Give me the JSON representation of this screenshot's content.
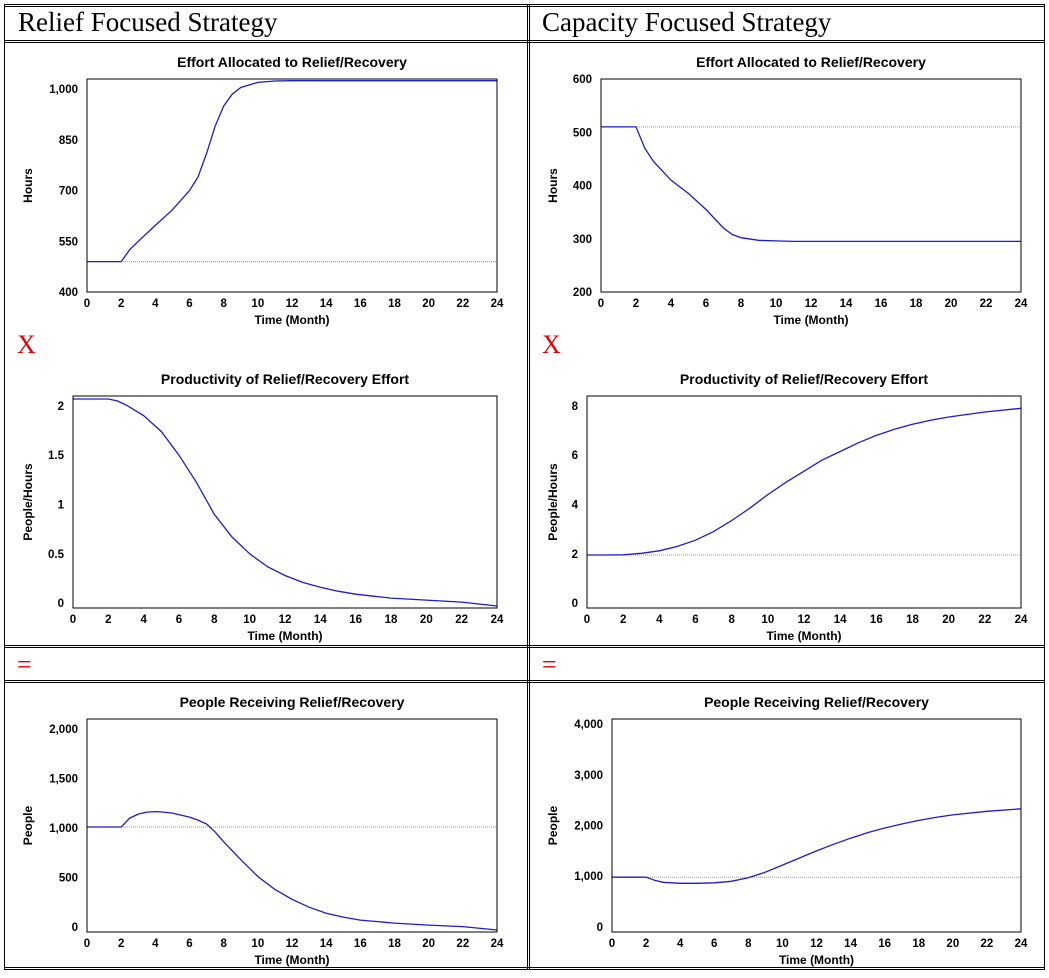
{
  "columns": [
    {
      "title": "Relief Focused Strategy"
    },
    {
      "title": "Capacity Focused Strategy"
    }
  ],
  "operators": {
    "multiply": "X",
    "equals": "="
  },
  "chart_data": [
    {
      "id": "relief-effort",
      "type": "line",
      "title": "Effort Allocated to Relief/Recovery",
      "xlabel": "Time (Month)",
      "ylabel": "Hours",
      "xlim": [
        0,
        24
      ],
      "ylim": [
        400,
        1030
      ],
      "xticks": [
        "0",
        "2",
        "4",
        "6",
        "8",
        "10",
        "12",
        "14",
        "16",
        "18",
        "20",
        "22",
        "24"
      ],
      "yticks": [
        {
          "v": 400,
          "label": "400"
        },
        {
          "v": 550,
          "label": "550"
        },
        {
          "v": 700,
          "label": "700"
        },
        {
          "v": 850,
          "label": "850"
        },
        {
          "v": 1000,
          "label": "1,000"
        }
      ],
      "reference": 490,
      "series": [
        {
          "x": [
            0,
            1,
            2,
            2.5,
            3,
            4,
            5,
            6,
            6.5,
            7,
            7.5,
            8,
            8.5,
            9,
            10,
            11,
            12,
            14,
            16,
            18,
            20,
            22,
            24
          ],
          "y": [
            490,
            490,
            490,
            525,
            550,
            597,
            643,
            700,
            740,
            810,
            890,
            950,
            985,
            1005,
            1020,
            1024,
            1025,
            1025,
            1025,
            1025,
            1025,
            1025,
            1025
          ]
        }
      ]
    },
    {
      "id": "capacity-effort",
      "type": "line",
      "title": "Effort Allocated to Relief/Recovery",
      "xlabel": "Time (Month)",
      "ylabel": "Hours",
      "xlim": [
        0,
        24
      ],
      "ylim": [
        200,
        600
      ],
      "xticks": [
        "0",
        "2",
        "4",
        "6",
        "8",
        "10",
        "12",
        "14",
        "16",
        "18",
        "20",
        "22",
        "24"
      ],
      "yticks": [
        {
          "v": 200,
          "label": "200"
        },
        {
          "v": 300,
          "label": "300"
        },
        {
          "v": 400,
          "label": "400"
        },
        {
          "v": 500,
          "label": "500"
        },
        {
          "v": 600,
          "label": "600"
        }
      ],
      "reference": 510,
      "series": [
        {
          "x": [
            0,
            1,
            2,
            2.5,
            3,
            4,
            5,
            6,
            7,
            7.5,
            8,
            9,
            10,
            11,
            12,
            14,
            16,
            18,
            20,
            22,
            24
          ],
          "y": [
            510,
            510,
            510,
            470,
            445,
            410,
            385,
            355,
            320,
            308,
            302,
            297,
            296,
            295,
            295,
            295,
            295,
            295,
            295,
            295,
            295
          ]
        }
      ]
    },
    {
      "id": "relief-productivity",
      "type": "line",
      "title": "Productivity of Relief/Recovery Effort",
      "xlabel": "Time (Month)",
      "ylabel": "People/Hours",
      "xlim": [
        0,
        24
      ],
      "ylim": [
        -0.05,
        2.1
      ],
      "xticks": [
        "0",
        "2",
        "4",
        "6",
        "8",
        "10",
        "12",
        "14",
        "16",
        "18",
        "20",
        "22",
        "24"
      ],
      "yticks": [
        {
          "v": 0,
          "label": "0"
        },
        {
          "v": 0.5,
          "label": "0.5"
        },
        {
          "v": 1,
          "label": "1"
        },
        {
          "v": 1.5,
          "label": "1.5"
        },
        {
          "v": 2,
          "label": "2"
        }
      ],
      "reference": null,
      "series": [
        {
          "x": [
            0,
            1,
            2,
            2.5,
            3,
            4,
            5,
            6,
            7,
            8,
            9,
            10,
            11,
            12,
            13,
            14,
            15,
            16,
            17,
            18,
            20,
            22,
            24
          ],
          "y": [
            2.07,
            2.07,
            2.07,
            2.05,
            2.01,
            1.9,
            1.74,
            1.5,
            1.22,
            0.9,
            0.67,
            0.5,
            0.37,
            0.28,
            0.21,
            0.16,
            0.12,
            0.09,
            0.07,
            0.05,
            0.03,
            0.01,
            -0.03
          ]
        }
      ]
    },
    {
      "id": "capacity-productivity",
      "type": "line",
      "title": "Productivity of Relief/Recovery Effort",
      "xlabel": "Time (Month)",
      "ylabel": "People/Hours",
      "xlim": [
        0,
        24
      ],
      "ylim": [
        -0.2,
        8.4
      ],
      "xticks": [
        "0",
        "2",
        "4",
        "6",
        "8",
        "10",
        "12",
        "14",
        "16",
        "18",
        "20",
        "22",
        "24"
      ],
      "yticks": [
        {
          "v": 0,
          "label": "0"
        },
        {
          "v": 2,
          "label": "2"
        },
        {
          "v": 4,
          "label": "4"
        },
        {
          "v": 6,
          "label": "6"
        },
        {
          "v": 8,
          "label": "8"
        }
      ],
      "reference": 1.95,
      "series": [
        {
          "x": [
            0,
            1,
            2,
            3,
            4,
            5,
            6,
            7,
            8,
            9,
            10,
            11,
            12,
            13,
            14,
            15,
            16,
            17,
            18,
            19,
            20,
            22,
            24
          ],
          "y": [
            1.95,
            1.95,
            1.96,
            2.02,
            2.12,
            2.3,
            2.55,
            2.9,
            3.35,
            3.85,
            4.4,
            4.9,
            5.35,
            5.8,
            6.15,
            6.5,
            6.8,
            7.05,
            7.25,
            7.42,
            7.55,
            7.75,
            7.9
          ]
        }
      ]
    },
    {
      "id": "relief-people",
      "type": "line",
      "title": "People Receiving Relief/Recovery",
      "xlabel": "Time (Month)",
      "ylabel": "People",
      "xlim": [
        0,
        24
      ],
      "ylim": [
        -50,
        2100
      ],
      "xticks": [
        "0",
        "2",
        "4",
        "6",
        "8",
        "10",
        "12",
        "14",
        "16",
        "18",
        "20",
        "22",
        "24"
      ],
      "yticks": [
        {
          "v": 0,
          "label": "0"
        },
        {
          "v": 500,
          "label": "500"
        },
        {
          "v": 1000,
          "label": "1,000"
        },
        {
          "v": 1500,
          "label": "1,500"
        },
        {
          "v": 2000,
          "label": "2,000"
        }
      ],
      "reference": 1010,
      "series": [
        {
          "x": [
            0,
            1,
            2,
            2.5,
            3,
            3.5,
            4,
            4.5,
            5,
            6,
            6.5,
            7,
            7.5,
            8,
            9,
            10,
            11,
            12,
            13,
            14,
            15,
            16,
            18,
            20,
            22,
            24
          ],
          "y": [
            1010,
            1010,
            1010,
            1100,
            1140,
            1160,
            1165,
            1160,
            1150,
            1110,
            1080,
            1040,
            960,
            860,
            680,
            510,
            380,
            280,
            200,
            140,
            100,
            70,
            40,
            20,
            5,
            -30
          ]
        }
      ]
    },
    {
      "id": "capacity-people",
      "type": "line",
      "title": "People Receiving Relief/Recovery",
      "xlabel": "Time (Month)",
      "ylabel": "People",
      "xlim": [
        0,
        24
      ],
      "ylim": [
        -100,
        4100
      ],
      "xticks": [
        "0",
        "2",
        "4",
        "6",
        "8",
        "10",
        "12",
        "14",
        "16",
        "18",
        "20",
        "22",
        "24"
      ],
      "yticks": [
        {
          "v": 0,
          "label": "0"
        },
        {
          "v": 1000,
          "label": "1,000"
        },
        {
          "v": 2000,
          "label": "2,000"
        },
        {
          "v": 3000,
          "label": "3,000"
        },
        {
          "v": 4000,
          "label": "4,000"
        }
      ],
      "reference": 980,
      "series": [
        {
          "x": [
            0,
            1,
            2,
            2.5,
            3,
            4,
            5,
            6,
            7,
            8,
            9,
            10,
            11,
            12,
            13,
            14,
            15,
            16,
            17,
            18,
            19,
            20,
            22,
            24
          ],
          "y": [
            980,
            980,
            980,
            920,
            880,
            860,
            860,
            870,
            900,
            970,
            1080,
            1220,
            1360,
            1500,
            1630,
            1750,
            1860,
            1950,
            2030,
            2100,
            2160,
            2210,
            2280,
            2330
          ]
        }
      ]
    }
  ]
}
